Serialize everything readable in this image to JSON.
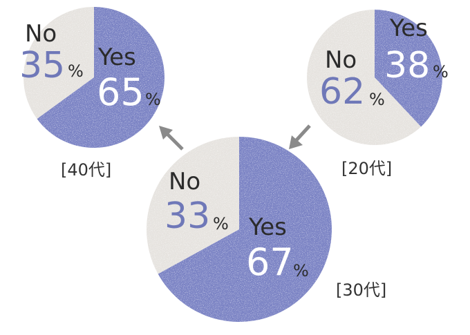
{
  "chart_data": [
    {
      "type": "pie",
      "group": "[40代]",
      "slices": [
        {
          "label": "Yes",
          "value": 65,
          "unit": "%",
          "color": "#7b83c4"
        },
        {
          "label": "No",
          "value": 35,
          "unit": "%",
          "color": "#e6e3df"
        }
      ]
    },
    {
      "type": "pie",
      "group": "[20代]",
      "slices": [
        {
          "label": "Yes",
          "value": 38,
          "unit": "%",
          "color": "#7b83c4"
        },
        {
          "label": "No",
          "value": 62,
          "unit": "%",
          "color": "#e6e3df"
        }
      ]
    },
    {
      "type": "pie",
      "group": "[30代]",
      "slices": [
        {
          "label": "Yes",
          "value": 67,
          "unit": "%",
          "color": "#7b83c4"
        },
        {
          "label": "No",
          "value": 33,
          "unit": "%",
          "color": "#e6e3df"
        }
      ]
    }
  ],
  "arrow_color": "#8a8a8a"
}
